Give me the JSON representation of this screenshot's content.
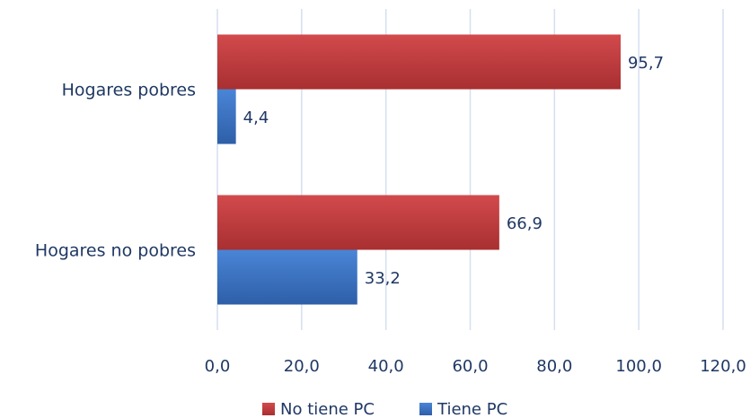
{
  "chart_data": {
    "type": "bar",
    "orientation": "horizontal",
    "categories": [
      "Hogares pobres",
      "Hogares no pobres"
    ],
    "series": [
      {
        "name": "No tiene PC",
        "values": [
          95.7,
          66.9
        ],
        "color": "#c0393b"
      },
      {
        "name": "Tiene PC",
        "values": [
          4.4,
          33.2
        ],
        "color": "#3a73c2"
      }
    ],
    "data_labels": [
      [
        "95,7",
        "66,9"
      ],
      [
        "4,4",
        "33,2"
      ]
    ],
    "xlim": [
      0,
      120
    ],
    "x_ticks": [
      0,
      20,
      40,
      60,
      80,
      100,
      120
    ],
    "x_tick_labels": [
      "0,0",
      "20,0",
      "40,0",
      "60,0",
      "80,0",
      "100,0",
      "120,0"
    ],
    "grid": true,
    "legend_position": "bottom"
  }
}
